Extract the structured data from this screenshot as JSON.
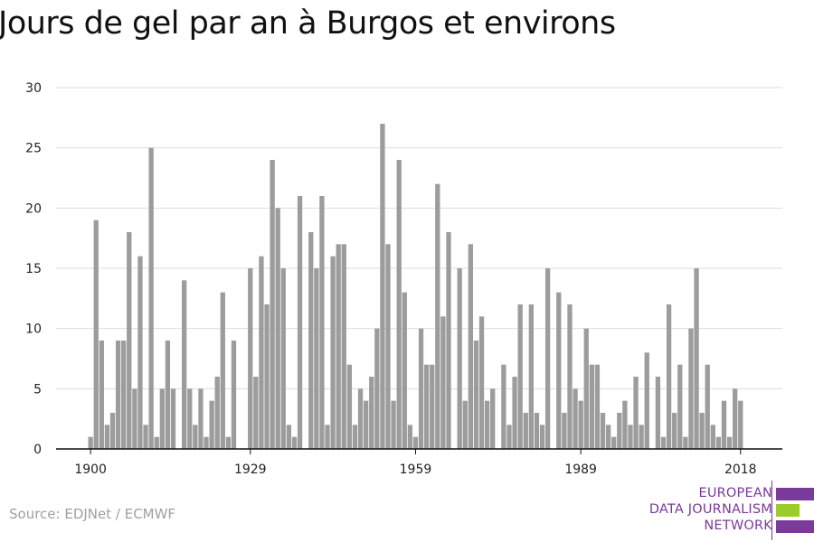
{
  "chart_data": {
    "type": "bar",
    "title": "Jours de gel par an à Burgos et environs",
    "source": "Source: EDJNet / ECMWF",
    "xlabel": "",
    "ylabel": "",
    "x_start": 1900,
    "x_end": 2018,
    "ylim": [
      0,
      30
    ],
    "y_ticks": [
      0,
      5,
      10,
      15,
      20,
      25,
      30
    ],
    "x_ticks": [
      1900,
      1929,
      1959,
      1989,
      2018
    ],
    "bar_color": "#9c9c9c",
    "grid": true,
    "values": [
      1,
      19,
      9,
      2,
      3,
      9,
      9,
      18,
      5,
      16,
      2,
      25,
      1,
      5,
      9,
      5,
      0,
      14,
      5,
      2,
      5,
      1,
      4,
      6,
      13,
      1,
      9,
      0,
      0,
      15,
      6,
      16,
      12,
      24,
      20,
      15,
      2,
      1,
      21,
      0,
      18,
      15,
      21,
      2,
      16,
      17,
      17,
      7,
      2,
      5,
      4,
      6,
      10,
      27,
      17,
      4,
      24,
      13,
      2,
      1,
      10,
      7,
      7,
      22,
      11,
      18,
      0,
      15,
      4,
      17,
      9,
      11,
      4,
      5,
      0,
      7,
      2,
      6,
      12,
      3,
      12,
      3,
      2,
      15,
      0,
      13,
      3,
      12,
      5,
      4,
      10,
      7,
      7,
      3,
      2,
      1,
      3,
      4,
      2,
      6,
      2,
      8,
      0,
      6,
      1,
      12,
      3,
      7,
      1,
      10,
      15,
      3,
      7,
      2,
      1,
      4,
      1,
      5,
      4
    ]
  },
  "logo": {
    "line1": "EUROPEAN",
    "line2": "DATA JOURNALISM",
    "line3": "NETWORK",
    "color_purple": "#7a3a9a",
    "color_green": "#9ccc2c"
  }
}
